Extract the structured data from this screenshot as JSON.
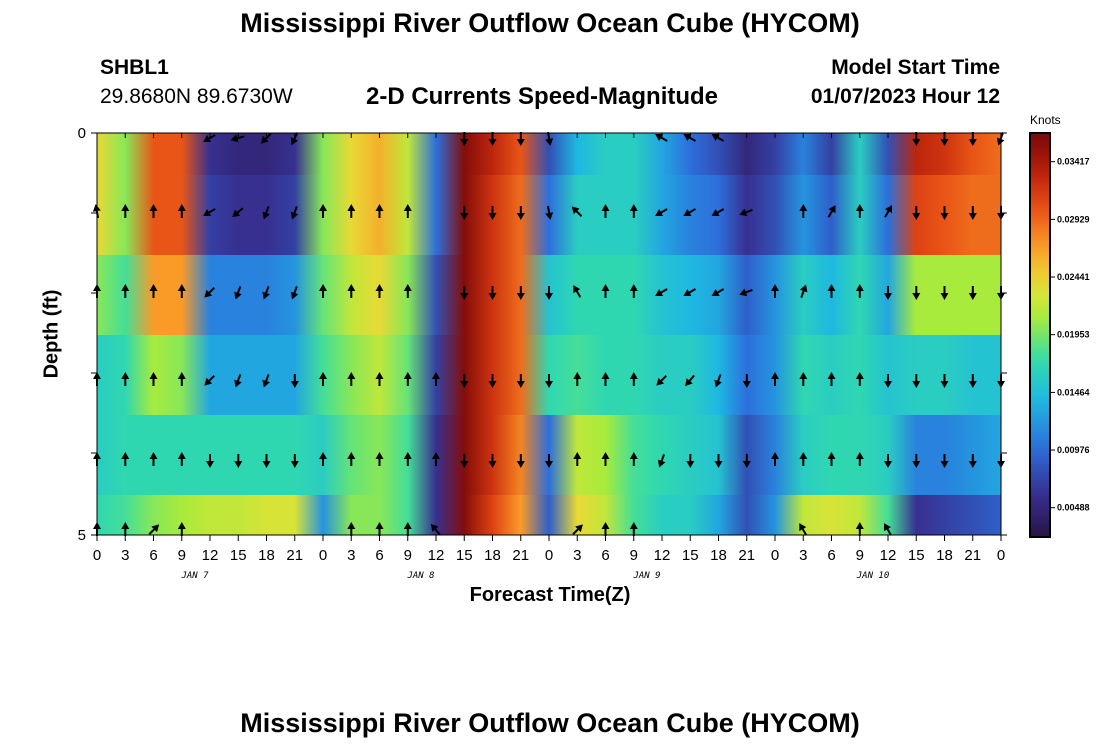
{
  "title": "Mississippi River Outflow Ocean Cube (HYCOM)",
  "next_title": "Mississippi River Outflow Ocean Cube (HYCOM)",
  "station": {
    "id": "SHBL1",
    "coords": "29.8680N  89.6730W"
  },
  "subtitle": "2-D Currents Speed-Magnitude",
  "model_start": {
    "label": "Model Start Time",
    "value": "01/07/2023 Hour 12"
  },
  "chart_data": {
    "type": "heatmap",
    "title": "2-D Currents Speed-Magnitude",
    "xlabel": "Forecast Time(Z)",
    "ylabel": "Depth (ft)",
    "colorbar_label": "Knots",
    "x_tick_labels": [
      "0",
      "3",
      "6",
      "9",
      "12",
      "15",
      "18",
      "21",
      "0",
      "3",
      "6",
      "9",
      "12",
      "15",
      "18",
      "21",
      "0",
      "3",
      "6",
      "9",
      "12",
      "15",
      "18",
      "21",
      "0",
      "3",
      "6",
      "9",
      "12",
      "15",
      "18",
      "21",
      "0"
    ],
    "date_labels": [
      "JAN 7",
      "JAN 8",
      "JAN 9",
      "JAN 10"
    ],
    "y_tick_labels": [
      "0",
      "",
      "",
      "",
      "",
      "5"
    ],
    "ylim": [
      0,
      5
    ],
    "colorbar_ticks": [
      "0.03417",
      "0.02929",
      "0.02441",
      "0.01953",
      "0.01464",
      "0.00976",
      "0.00488"
    ],
    "clim": [
      0.0024,
      0.0366
    ],
    "grid": false,
    "cell_times": [
      "Jan 7 00",
      "Jan 7 03",
      "Jan 7 06",
      "Jan 7 09",
      "Jan 7 12",
      "Jan 7 15",
      "Jan 7 18",
      "Jan 7 21",
      "Jan 8 00",
      "Jan 8 03",
      "Jan 8 06",
      "Jan 8 09",
      "Jan 8 12",
      "Jan 8 15",
      "Jan 8 18",
      "Jan 8 21",
      "Jan 9 00",
      "Jan 9 03",
      "Jan 9 06",
      "Jan 9 09",
      "Jan 9 12",
      "Jan 9 15",
      "Jan 9 18",
      "Jan 9 21",
      "Jan 10 00",
      "Jan 10 03",
      "Jan 10 06",
      "Jan 10 09",
      "Jan 10 12",
      "Jan 10 15",
      "Jan 10 18",
      "Jan 10 21",
      "Jan 11 00"
    ],
    "depth_layers": [
      "0-1 ft",
      "1-2 ft",
      "2-3 ft",
      "3-4 ft",
      "4-4.5 ft",
      "4.5-5 ft"
    ],
    "speed_knots": [
      [
        0.024,
        0.02,
        0.03,
        0.03,
        0.006,
        0.005,
        0.005,
        0.006,
        0.02,
        0.024,
        0.026,
        0.022,
        0.01,
        0.036,
        0.033,
        0.03,
        0.008,
        0.014,
        0.016,
        0.016,
        0.013,
        0.01,
        0.008,
        0.005,
        0.007,
        0.011,
        0.007,
        0.016,
        0.008,
        0.033,
        0.032,
        0.03,
        0.029
      ],
      [
        0.024,
        0.02,
        0.03,
        0.03,
        0.007,
        0.006,
        0.006,
        0.007,
        0.02,
        0.024,
        0.026,
        0.022,
        0.01,
        0.036,
        0.032,
        0.029,
        0.01,
        0.016,
        0.016,
        0.016,
        0.013,
        0.011,
        0.01,
        0.006,
        0.008,
        0.012,
        0.009,
        0.016,
        0.01,
        0.031,
        0.03,
        0.029,
        0.029
      ],
      [
        0.02,
        0.018,
        0.027,
        0.027,
        0.011,
        0.011,
        0.011,
        0.012,
        0.019,
        0.022,
        0.024,
        0.02,
        0.008,
        0.036,
        0.032,
        0.029,
        0.015,
        0.017,
        0.017,
        0.017,
        0.015,
        0.014,
        0.013,
        0.009,
        0.012,
        0.016,
        0.014,
        0.017,
        0.013,
        0.021,
        0.021,
        0.021,
        0.021
      ],
      [
        0.016,
        0.017,
        0.021,
        0.02,
        0.013,
        0.013,
        0.013,
        0.013,
        0.018,
        0.02,
        0.022,
        0.019,
        0.007,
        0.036,
        0.032,
        0.029,
        0.017,
        0.018,
        0.017,
        0.017,
        0.016,
        0.016,
        0.014,
        0.01,
        0.012,
        0.017,
        0.016,
        0.017,
        0.015,
        0.016,
        0.016,
        0.015,
        0.015
      ],
      [
        0.016,
        0.017,
        0.017,
        0.017,
        0.017,
        0.017,
        0.017,
        0.017,
        0.016,
        0.019,
        0.02,
        0.018,
        0.006,
        0.036,
        0.032,
        0.028,
        0.01,
        0.022,
        0.021,
        0.018,
        0.017,
        0.016,
        0.015,
        0.008,
        0.011,
        0.016,
        0.017,
        0.017,
        0.016,
        0.011,
        0.011,
        0.012,
        0.013
      ],
      [
        0.017,
        0.018,
        0.02,
        0.021,
        0.022,
        0.022,
        0.023,
        0.023,
        0.012,
        0.02,
        0.02,
        0.018,
        0.006,
        0.036,
        0.031,
        0.027,
        0.009,
        0.024,
        0.022,
        0.018,
        0.016,
        0.016,
        0.013,
        0.008,
        0.012,
        0.022,
        0.023,
        0.022,
        0.018,
        0.006,
        0.007,
        0.008,
        0.009
      ]
    ],
    "arrow_direction_deg": [
      [
        null,
        null,
        null,
        null,
        240,
        255,
        225,
        205,
        null,
        null,
        null,
        null,
        null,
        180,
        180,
        180,
        170,
        null,
        null,
        null,
        300,
        300,
        300,
        null,
        null,
        null,
        null,
        null,
        null,
        180,
        180,
        180,
        200
      ],
      [
        350,
        0,
        0,
        0,
        240,
        230,
        200,
        200,
        0,
        0,
        0,
        0,
        null,
        180,
        180,
        180,
        170,
        315,
        0,
        0,
        240,
        240,
        240,
        250,
        null,
        0,
        30,
        0,
        30,
        180,
        180,
        180,
        180
      ],
      [
        0,
        0,
        0,
        0,
        225,
        200,
        200,
        200,
        0,
        0,
        0,
        0,
        null,
        180,
        180,
        180,
        180,
        330,
        0,
        0,
        240,
        240,
        240,
        250,
        0,
        20,
        0,
        0,
        180,
        180,
        180,
        180,
        180
      ],
      [
        0,
        0,
        0,
        0,
        225,
        200,
        200,
        180,
        0,
        0,
        0,
        0,
        0,
        180,
        180,
        180,
        180,
        0,
        0,
        0,
        225,
        220,
        200,
        180,
        0,
        0,
        0,
        0,
        180,
        180,
        180,
        180,
        180
      ],
      [
        0,
        0,
        0,
        0,
        180,
        180,
        180,
        180,
        0,
        0,
        0,
        0,
        0,
        180,
        180,
        180,
        180,
        0,
        0,
        0,
        200,
        180,
        180,
        180,
        0,
        0,
        0,
        0,
        180,
        180,
        180,
        180,
        180
      ],
      [
        0,
        0,
        45,
        0,
        null,
        null,
        null,
        null,
        null,
        0,
        0,
        0,
        320,
        null,
        null,
        null,
        null,
        45,
        0,
        0,
        null,
        null,
        null,
        null,
        null,
        330,
        null,
        0,
        330,
        null,
        null,
        null,
        null
      ]
    ]
  }
}
